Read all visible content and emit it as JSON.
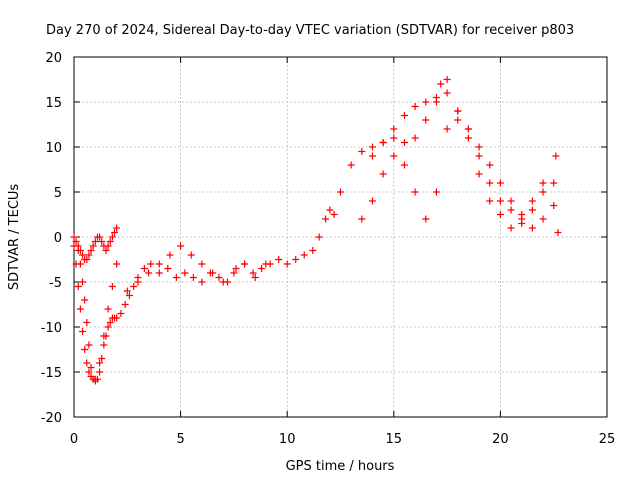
{
  "chart_data": {
    "type": "scatter",
    "title": "Day 270 of 2024, Sidereal Day-to-day VTEC variation (SDTVAR) for receiver p803",
    "xlabel": "GPS time / hours",
    "ylabel": "SDTVAR / TECUs",
    "xlim": [
      0,
      25
    ],
    "ylim": [
      -20,
      20
    ],
    "xticks": [
      0,
      5,
      10,
      15,
      20,
      25
    ],
    "yticks": [
      -20,
      -15,
      -10,
      -5,
      0,
      5,
      10,
      15,
      20
    ],
    "xtick_labels": [
      "0",
      "5",
      "10",
      "15",
      "20",
      "25"
    ],
    "ytick_labels": [
      "-20",
      "-15",
      "-10",
      "-5",
      "0",
      "5",
      "10",
      "15",
      "20"
    ],
    "grid": true,
    "marker": "+",
    "series": [
      {
        "name": "p803",
        "color": "#ff0000",
        "x": [
          0.0,
          0.1,
          0.2,
          0.3,
          0.4,
          0.5,
          0.6,
          0.7,
          0.8,
          0.9,
          1.0,
          1.1,
          1.2,
          1.3,
          1.4,
          1.5,
          1.6,
          1.7,
          1.8,
          1.9,
          2.0,
          2.2,
          2.4,
          2.6,
          2.8,
          3.0,
          3.3,
          3.6,
          4.0,
          4.4,
          4.8,
          5.2,
          5.6,
          6.0,
          6.4,
          6.8,
          7.2,
          7.6,
          8.0,
          8.4,
          8.8,
          9.2,
          9.6,
          10.0,
          10.4,
          10.8,
          11.2,
          11.5,
          11.8,
          12.0,
          12.2,
          12.5,
          13.0,
          13.5,
          14.0,
          14.5,
          15.0,
          15.5,
          16.0,
          16.5,
          17.0,
          17.2,
          17.5,
          18.0,
          18.5,
          19.0,
          19.5,
          20.0,
          20.5,
          21.0,
          21.5,
          22.0,
          22.5,
          22.7,
          0.0,
          0.1,
          0.2,
          0.3,
          0.4,
          0.5,
          0.6,
          0.7,
          0.8,
          0.9,
          1.0,
          1.1,
          1.2,
          1.3,
          1.4,
          1.5,
          1.6,
          1.7,
          1.8,
          1.9,
          2.0,
          0.2,
          0.3,
          0.4,
          0.5,
          0.6,
          0.7,
          0.8,
          1.0,
          1.2,
          1.4,
          1.6,
          1.8,
          2.0,
          2.5,
          3.0,
          3.5,
          4.0,
          4.5,
          5.0,
          5.5,
          6.0,
          6.5,
          7.0,
          7.5,
          8.0,
          8.5,
          9.0,
          13.5,
          14.0,
          14.5,
          15.0,
          15.5,
          16.0,
          16.5,
          17.0,
          17.5,
          18.0,
          18.5,
          19.0,
          19.5,
          20.0,
          20.5,
          21.0,
          21.5,
          22.0,
          22.5,
          14.0,
          14.5,
          15.0,
          15.5,
          16.0,
          16.5,
          17.0,
          17.5,
          18.0,
          18.5,
          19.0,
          19.5,
          20.0,
          20.5,
          21.0,
          21.5,
          22.0,
          22.6
        ],
        "y": [
          -1.0,
          -3.0,
          -5.5,
          -8.0,
          -10.5,
          -12.5,
          -14.0,
          -15.0,
          -15.5,
          -15.8,
          -16.0,
          -15.8,
          -15.0,
          -13.5,
          -12.0,
          -11.0,
          -10.0,
          -9.5,
          -9.0,
          -9.0,
          -9.0,
          -8.5,
          -7.5,
          -6.5,
          -5.5,
          -4.5,
          -3.5,
          -3.0,
          -4.0,
          -3.5,
          -4.5,
          -4.0,
          -4.5,
          -5.0,
          -4.0,
          -4.5,
          -5.0,
          -3.5,
          -3.0,
          -4.0,
          -3.5,
          -3.0,
          -2.5,
          -3.0,
          -2.5,
          -2.0,
          -1.5,
          0.0,
          2.0,
          3.0,
          2.5,
          5.0,
          8.0,
          9.5,
          10.0,
          10.5,
          11.0,
          10.5,
          11.0,
          13.0,
          15.0,
          17.0,
          16.0,
          13.0,
          12.0,
          10.0,
          8.0,
          6.0,
          4.0,
          2.0,
          1.0,
          2.0,
          3.5,
          0.5,
          0.0,
          -0.5,
          -1.0,
          -1.5,
          -2.0,
          -2.5,
          -2.5,
          -2.0,
          -1.5,
          -1.0,
          -0.5,
          0.0,
          0.0,
          -0.5,
          -1.0,
          -1.5,
          -1.0,
          -0.5,
          0.0,
          0.5,
          1.0,
          -1.5,
          -3.0,
          -5.0,
          -7.0,
          -9.5,
          -12.0,
          -14.5,
          -15.8,
          -14.0,
          -11.0,
          -8.0,
          -5.5,
          -3.0,
          -6.0,
          -5.0,
          -4.0,
          -3.0,
          -2.0,
          -1.0,
          -2.0,
          -3.0,
          -4.0,
          -5.0,
          -4.0,
          -3.0,
          -4.5,
          -3.0,
          2.0,
          4.0,
          7.0,
          9.0,
          8.0,
          5.0,
          2.0,
          5.0,
          12.0,
          14.0,
          12.0,
          9.0,
          6.0,
          4.0,
          3.0,
          2.5,
          4.0,
          5.0,
          6.0,
          9.0,
          10.5,
          12.0,
          13.5,
          14.5,
          15.0,
          15.5,
          17.5,
          14.0,
          11.0,
          7.0,
          4.0,
          2.5,
          1.0,
          1.5,
          3.0,
          6.0,
          9.0
        ]
      }
    ]
  }
}
